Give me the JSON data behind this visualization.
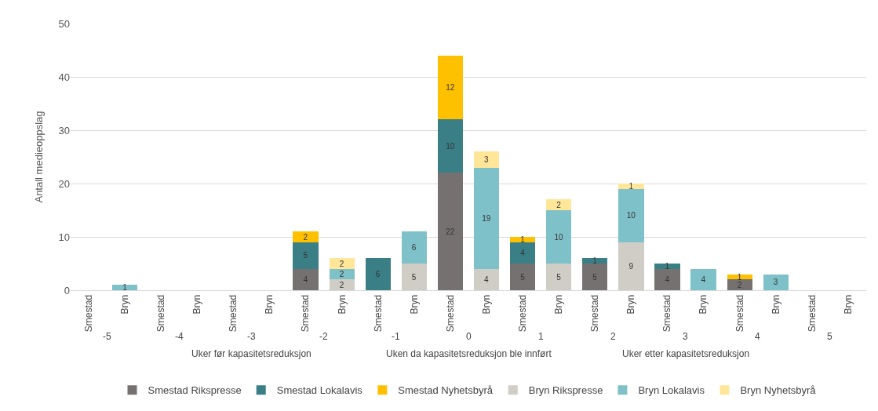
{
  "chart_data": {
    "type": "bar",
    "stacked": true,
    "ylabel": "Antall medieoppslag",
    "categories": [
      "Smestad",
      "Bryn",
      "Smestad",
      "Bryn",
      "Smestad",
      "Bryn",
      "Smestad",
      "Bryn",
      "Smestad",
      "Bryn",
      "Smestad",
      "Bryn",
      "Smestad",
      "Bryn",
      "Smestad",
      "Bryn",
      "Smestad",
      "Bryn",
      "Smestad",
      "Bryn",
      "Smestad",
      "Bryn"
    ],
    "series": [
      {
        "name": "Smestad Rikspresse",
        "color": "#767171",
        "values": [
          null,
          null,
          null,
          null,
          null,
          null,
          4,
          null,
          null,
          null,
          22,
          null,
          5,
          null,
          5,
          null,
          4,
          null,
          2,
          null,
          null,
          null
        ]
      },
      {
        "name": "Smestad Lokalavis",
        "color": "#3a7f85",
        "values": [
          null,
          null,
          null,
          null,
          null,
          null,
          5,
          null,
          6,
          null,
          10,
          null,
          4,
          null,
          1,
          null,
          1,
          null,
          null,
          null,
          null,
          null
        ]
      },
      {
        "name": "Smestad Nyhetsbyrå",
        "color": "#ffc000",
        "values": [
          null,
          null,
          null,
          null,
          null,
          null,
          2,
          null,
          null,
          null,
          12,
          null,
          1,
          null,
          null,
          null,
          null,
          null,
          1,
          null,
          null,
          null
        ]
      },
      {
        "name": "Bryn Rikspresse",
        "color": "#d0cdc6",
        "values": [
          null,
          null,
          null,
          null,
          null,
          null,
          null,
          2,
          null,
          5,
          null,
          4,
          null,
          5,
          null,
          9,
          null,
          null,
          null,
          null,
          null,
          null
        ]
      },
      {
        "name": "Bryn Lokalavis",
        "color": "#7fc1c8",
        "values": [
          null,
          1,
          null,
          null,
          null,
          null,
          null,
          2,
          null,
          6,
          null,
          19,
          null,
          10,
          null,
          10,
          null,
          4,
          null,
          3,
          null,
          null
        ]
      },
      {
        "name": "Bryn Nyhetsbyrå",
        "color": "#ffe699",
        "values": [
          null,
          null,
          null,
          null,
          null,
          null,
          null,
          2,
          null,
          null,
          null,
          3,
          null,
          2,
          null,
          1,
          null,
          null,
          null,
          null,
          null,
          null
        ]
      }
    ],
    "ylim": [
      0,
      50
    ],
    "yticks": [
      0,
      10,
      20,
      30,
      40,
      50
    ],
    "grid": "y",
    "legend": "bottom",
    "data_labels": true,
    "annotations": [
      "-5",
      "-4",
      "-3",
      "-2",
      "-1",
      "0",
      "1",
      "2",
      "3",
      "4",
      "5",
      "Uker før kapasitetsreduksjon",
      "Uken da kapasitetsreduksjon ble innført",
      "Uker etter kapasitetsreduksjon"
    ]
  }
}
